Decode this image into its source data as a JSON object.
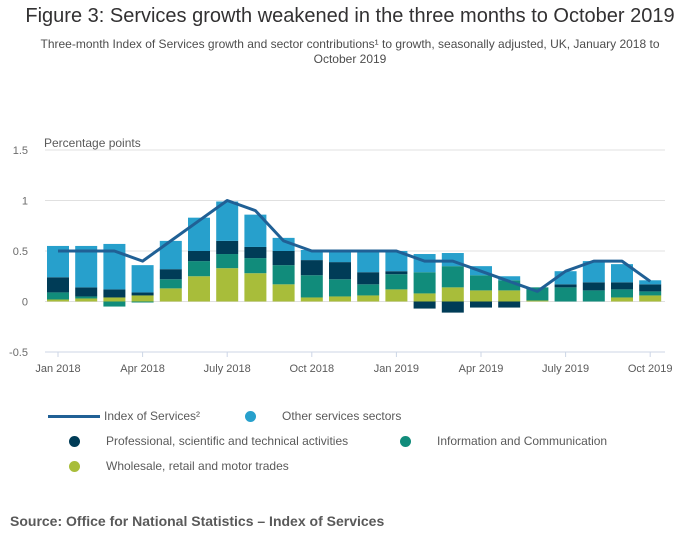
{
  "title": "Figure 3: Services growth weakened in the three months to October 2019",
  "subtitle": "Three-month Index of Services growth and sector contributions¹ to growth, seasonally adjusted, UK, January 2018 to October 2019",
  "source": "Source: Office for National Statistics – Index of Services",
  "chart_data": {
    "type": "bar",
    "stacked": true,
    "title": "Figure 3: Services growth weakened in the three months to October 2019",
    "ylabel": "Percentage points",
    "xlabel": "",
    "ylim": [
      -0.5,
      1.5
    ],
    "yticks": [
      "1.5",
      "1",
      "0.5",
      "0",
      "-0.5"
    ],
    "ytick_values": [
      1.5,
      1,
      0.5,
      0,
      -0.5
    ],
    "grid": true,
    "legend_position": "bottom",
    "categories": [
      "Jan 2018",
      "Feb 2018",
      "Mar 2018",
      "Apr 2018",
      "May 2018",
      "Jun 2018",
      "Jul 2018",
      "Aug 2018",
      "Sep 2018",
      "Oct 2018",
      "Nov 2018",
      "Dec 2018",
      "Jan 2019",
      "Feb 2019",
      "Mar 2019",
      "Apr 2019",
      "May 2019",
      "Jun 2019",
      "Jul 2019",
      "Aug 2019",
      "Sep 2019",
      "Oct 2019"
    ],
    "xtick_labels": [
      {
        "index": 0,
        "label": "Jan 2018"
      },
      {
        "index": 3,
        "label": "Apr 2018"
      },
      {
        "index": 6,
        "label": "July 2018"
      },
      {
        "index": 9,
        "label": "Oct 2018"
      },
      {
        "index": 12,
        "label": "Jan 2019"
      },
      {
        "index": 15,
        "label": "Apr 2019"
      },
      {
        "index": 18,
        "label": "July 2019"
      },
      {
        "index": 21,
        "label": "Oct 2019"
      }
    ],
    "series": [
      {
        "name": "Wholesale, retail and motor trades",
        "kind": "bar",
        "color": "#a8bd3a",
        "values": [
          0.02,
          0.03,
          0.04,
          0.06,
          0.13,
          0.25,
          0.33,
          0.28,
          0.17,
          0.04,
          0.05,
          0.06,
          0.12,
          0.08,
          0.14,
          0.11,
          0.11,
          0.01,
          0.0,
          0.0,
          0.04,
          0.06
        ]
      },
      {
        "name": "Information and Communication",
        "kind": "bar",
        "color": "#118c7b",
        "values": [
          0.07,
          0.02,
          -0.05,
          -0.01,
          0.09,
          0.15,
          0.14,
          0.15,
          0.19,
          0.22,
          0.17,
          0.11,
          0.15,
          0.21,
          0.21,
          0.15,
          0.1,
          0.13,
          0.14,
          0.11,
          0.08,
          0.04
        ]
      },
      {
        "name": "Professional, scientific and technical activities",
        "kind": "bar",
        "color": "#003c57",
        "values": [
          0.15,
          0.09,
          0.08,
          0.03,
          0.1,
          0.1,
          0.13,
          0.11,
          0.14,
          0.15,
          0.17,
          0.12,
          0.03,
          -0.07,
          -0.11,
          -0.06,
          -0.06,
          0.0,
          0.03,
          0.08,
          0.07,
          0.07
        ]
      },
      {
        "name": "Other services sectors",
        "kind": "bar",
        "color": "#27a0cc",
        "values": [
          0.31,
          0.41,
          0.45,
          0.27,
          0.28,
          0.33,
          0.39,
          0.32,
          0.13,
          0.1,
          0.12,
          0.21,
          0.2,
          0.18,
          0.13,
          0.09,
          0.04,
          0.0,
          0.13,
          0.21,
          0.18,
          0.04
        ]
      },
      {
        "name": "Index of Services²",
        "kind": "line",
        "color": "#206095",
        "values": [
          0.5,
          0.5,
          0.5,
          0.4,
          0.6,
          0.8,
          1.0,
          0.9,
          0.6,
          0.5,
          0.5,
          0.5,
          0.5,
          0.4,
          0.4,
          0.3,
          0.2,
          0.1,
          0.3,
          0.4,
          0.4,
          0.2
        ]
      }
    ]
  },
  "legend": [
    {
      "label": "Index of Services²",
      "marker": "line",
      "color": "#206095"
    },
    {
      "label": "Other services sectors",
      "marker": "dot",
      "color": "#27a0cc"
    },
    {
      "label": "Professional, scientific and technical activities",
      "marker": "dot",
      "color": "#003c57"
    },
    {
      "label": "Information and Communication",
      "marker": "dot",
      "color": "#118c7b"
    },
    {
      "label": "Wholesale, retail and motor trades",
      "marker": "dot",
      "color": "#a8bd3a"
    }
  ]
}
